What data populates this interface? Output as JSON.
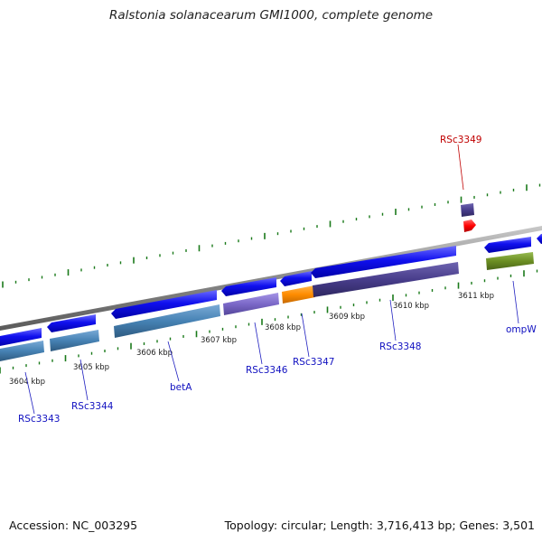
{
  "title": "Ralstonia solanacearum GMI1000, complete genome",
  "footer": {
    "accession": "Accession: NC_003295",
    "summary": "Topology: circular; Length: 3,716,413 bp; Genes: 3,501"
  },
  "kbp_labels": [
    "3604 kbp",
    "3605 kbp",
    "3606 kbp",
    "3607 kbp",
    "3608 kbp",
    "3609 kbp",
    "3610 kbp",
    "3611 kbp"
  ],
  "gene_labels": [
    "RSc3343",
    "RSc3344",
    "betA",
    "RSc3346",
    "RSc3347",
    "RSc3348",
    "ompW",
    "RSc3349"
  ],
  "colors": {
    "gene": "#1010e8",
    "cds_steelblue": "#4682b4",
    "cds_lightpurple": "#7b68c8",
    "cds_orange": "#ff8c00",
    "cds_darkpurple": "#483d8b",
    "cds_olive": "#6b8e23",
    "rna": "#ff0000",
    "ticks": "#1a7a1a",
    "label_default": "#1010c0",
    "label_highlight": "#c00000"
  }
}
